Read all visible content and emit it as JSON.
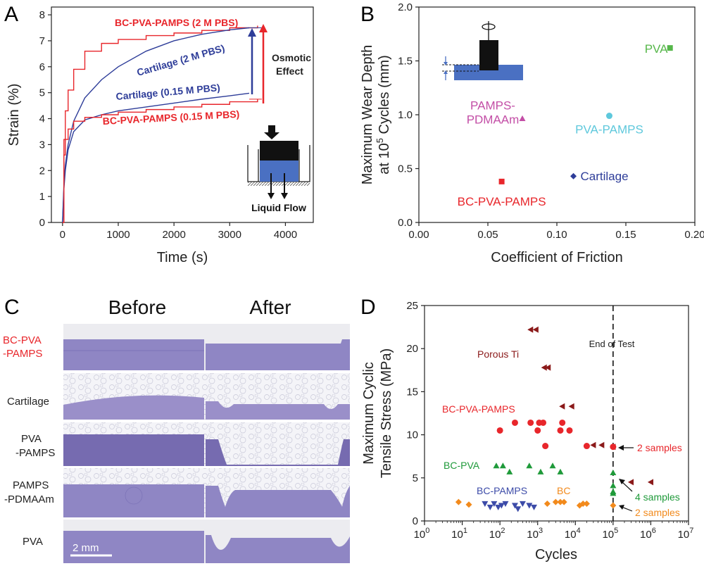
{
  "figure": {
    "panel_labels": [
      "A",
      "B",
      "C",
      "D"
    ]
  },
  "chart_data": [
    {
      "panel": "A",
      "type": "line",
      "xlabel": "Time (s)",
      "ylabel": "Strain (%)",
      "xlim": [
        -200,
        4500
      ],
      "ylim": [
        0,
        8.3
      ],
      "xticks": [
        0,
        1000,
        2000,
        3000,
        4000
      ],
      "yticks": [
        0,
        1,
        2,
        3,
        4,
        5,
        6,
        7,
        8
      ],
      "series": [
        {
          "name": "BC-PVA-PAMPS (2 M PBS)",
          "color": "#e8262b",
          "x": [
            0,
            25,
            50,
            100,
            200,
            400,
            700,
            1000,
            1500,
            2000,
            2500,
            3000,
            3500
          ],
          "y": [
            0,
            3.2,
            4.3,
            5.1,
            5.9,
            6.6,
            6.9,
            7.05,
            7.2,
            7.3,
            7.4,
            7.5,
            7.58
          ]
        },
        {
          "name": "Cartilage (2 M PBS)",
          "color": "#2e3d99",
          "x": [
            0,
            25,
            50,
            100,
            200,
            400,
            700,
            1000,
            1500,
            2000,
            2500,
            3000,
            3350
          ],
          "y": [
            0,
            1.5,
            2.2,
            3.0,
            3.9,
            4.8,
            5.5,
            6.0,
            6.6,
            7.0,
            7.25,
            7.42,
            7.5
          ]
        },
        {
          "name": "Cartilage (0.15 M PBS)",
          "color": "#2e3d99",
          "x": [
            0,
            25,
            50,
            100,
            200,
            400,
            700,
            1000,
            1500,
            2000,
            2500,
            3000,
            3350
          ],
          "y": [
            0,
            1.3,
            2.0,
            2.8,
            3.5,
            3.95,
            4.15,
            4.3,
            4.45,
            4.6,
            4.75,
            4.88,
            4.98
          ]
        },
        {
          "name": "BC-PVA-PAMPS (0.15 M PBS)",
          "color": "#e8262b",
          "x": [
            0,
            25,
            50,
            100,
            200,
            400,
            700,
            1000,
            1500,
            2000,
            2500,
            3000,
            3500
          ],
          "y": [
            0,
            2.6,
            3.2,
            3.6,
            3.9,
            4.05,
            4.15,
            4.25,
            4.35,
            4.45,
            4.55,
            4.65,
            4.75
          ]
        }
      ],
      "annotations": {
        "osmotic_effect": "Osmotic\nEffect",
        "liquid_flow": "Liquid Flow"
      }
    },
    {
      "panel": "B",
      "type": "scatter",
      "xlabel": "Coefficient of Friction",
      "ylabel_line1": "Maximum Wear Depth",
      "ylabel_line2_pre": "at 10",
      "ylabel_line2_sup": "5",
      "ylabel_line2_post": " Cycles (mm)",
      "xlim": [
        0.0,
        0.2
      ],
      "ylim": [
        0.0,
        2.0
      ],
      "xticks": [
        "0.00",
        "0.05",
        "0.10",
        "0.15",
        "0.20"
      ],
      "yticks": [
        "0.0",
        "0.5",
        "1.0",
        "1.5",
        "2.0"
      ],
      "points": [
        {
          "label": "PVA",
          "x": 0.182,
          "y": 1.62,
          "color": "#56b74a",
          "marker": "square"
        },
        {
          "label": "PAMPS-\nPDMAAm",
          "x": 0.075,
          "y": 0.965,
          "color": "#c34ea6",
          "marker": "triangle"
        },
        {
          "label": "PVA-PAMPS",
          "x": 0.138,
          "y": 0.99,
          "color": "#5ec8dc",
          "marker": "circle"
        },
        {
          "label": "Cartilage",
          "x": 0.112,
          "y": 0.43,
          "color": "#2e3d99",
          "marker": "diamond"
        },
        {
          "label": "BC-PVA-PAMPS",
          "x": 0.06,
          "y": 0.38,
          "color": "#e8262b",
          "marker": "square"
        }
      ]
    },
    {
      "panel": "D",
      "type": "scatter",
      "xlabel": "Cycles",
      "ylabel_line1": "Maximum Cyclic",
      "ylabel_line2": "Tensile Stress (MPa)",
      "xscale": "log",
      "xlim": [
        1,
        10000000
      ],
      "ylim": [
        0,
        25
      ],
      "xtick_base": "10",
      "xtick_exponents": [
        "0",
        "1",
        "2",
        "3",
        "4",
        "5",
        "6",
        "7"
      ],
      "yticks": [
        0,
        5,
        10,
        15,
        20,
        25
      ],
      "end_of_test_x": 100000,
      "end_of_test_label": "End of Test",
      "groups": [
        {
          "name": "Porous Ti",
          "color": "#8b1a1a",
          "marker": "triangle-left",
          "points": [
            [
              650,
              22.2
            ],
            [
              900,
              22.2
            ],
            [
              1500,
              17.8
            ],
            [
              1900,
              17.8
            ],
            [
              4500,
              13.3
            ],
            [
              8000,
              13.3
            ],
            [
              30000,
              8.8
            ],
            [
              50000,
              8.8
            ],
            [
              100000,
              8.6
            ],
            [
              300000,
              4.5
            ],
            [
              1000000,
              4.5
            ]
          ]
        },
        {
          "name": "BC-PVA-PAMPS",
          "color": "#e8262b",
          "marker": "circle",
          "points": [
            [
              100,
              10.5
            ],
            [
              250,
              11.4
            ],
            [
              650,
              11.4
            ],
            [
              1100,
              11.4
            ],
            [
              1400,
              11.4
            ],
            [
              4500,
              11.4
            ],
            [
              4000,
              10.5
            ],
            [
              7000,
              10.5
            ],
            [
              1000,
              10.5
            ],
            [
              1600,
              8.7
            ],
            [
              20000,
              8.7
            ],
            [
              100000,
              8.6
            ]
          ]
        },
        {
          "name": "BC-PVA",
          "color": "#1f9a3a",
          "marker": "triangle-up",
          "points": [
            [
              80,
              6.4
            ],
            [
              120,
              6.4
            ],
            [
              180,
              5.7
            ],
            [
              600,
              6.4
            ],
            [
              1200,
              5.7
            ],
            [
              2500,
              6.4
            ],
            [
              4000,
              5.7
            ],
            [
              100000,
              5.6
            ],
            [
              100000,
              4.1
            ],
            [
              100000,
              3.4
            ],
            [
              100000,
              3.2
            ]
          ]
        },
        {
          "name": "BC-PAMPS",
          "color": "#3c4ba8",
          "marker": "triangle-down",
          "points": [
            [
              40,
              2.0
            ],
            [
              55,
              1.6
            ],
            [
              70,
              2.0
            ],
            [
              90,
              1.6
            ],
            [
              110,
              1.8
            ],
            [
              140,
              2.0
            ],
            [
              250,
              1.8
            ],
            [
              300,
              1.4
            ],
            [
              400,
              2.0
            ],
            [
              600,
              1.8
            ],
            [
              800,
              1.6
            ]
          ]
        },
        {
          "name": "BC",
          "color": "#f28a1c",
          "marker": "diamond",
          "points": [
            [
              8,
              2.2
            ],
            [
              15,
              1.9
            ],
            [
              1800,
              2.0
            ],
            [
              3000,
              2.2
            ],
            [
              4000,
              2.2
            ],
            [
              5000,
              2.2
            ],
            [
              13000,
              1.8
            ],
            [
              16000,
              2.0
            ],
            [
              20000,
              2.0
            ],
            [
              100000,
              1.8
            ]
          ]
        }
      ],
      "annotations": [
        {
          "text": "2 samples",
          "color": "#e8262b"
        },
        {
          "text": "4 samples",
          "color": "#1f9a3a"
        },
        {
          "text": "2 samples",
          "color": "#f28a1c"
        }
      ]
    }
  ],
  "panel_c": {
    "column_headers": [
      "Before",
      "After"
    ],
    "row_labels": [
      {
        "text": "BC-PVA\n-PAMPS",
        "color": "#e8262b"
      },
      {
        "text": "Cartilage",
        "color": "#222222"
      },
      {
        "text": "PVA\n-PAMPS",
        "color": "#222222"
      },
      {
        "text": "PAMPS\n-PDMAAm",
        "color": "#222222"
      },
      {
        "text": "PVA",
        "color": "#222222"
      }
    ],
    "scale_bar": "2 mm"
  }
}
